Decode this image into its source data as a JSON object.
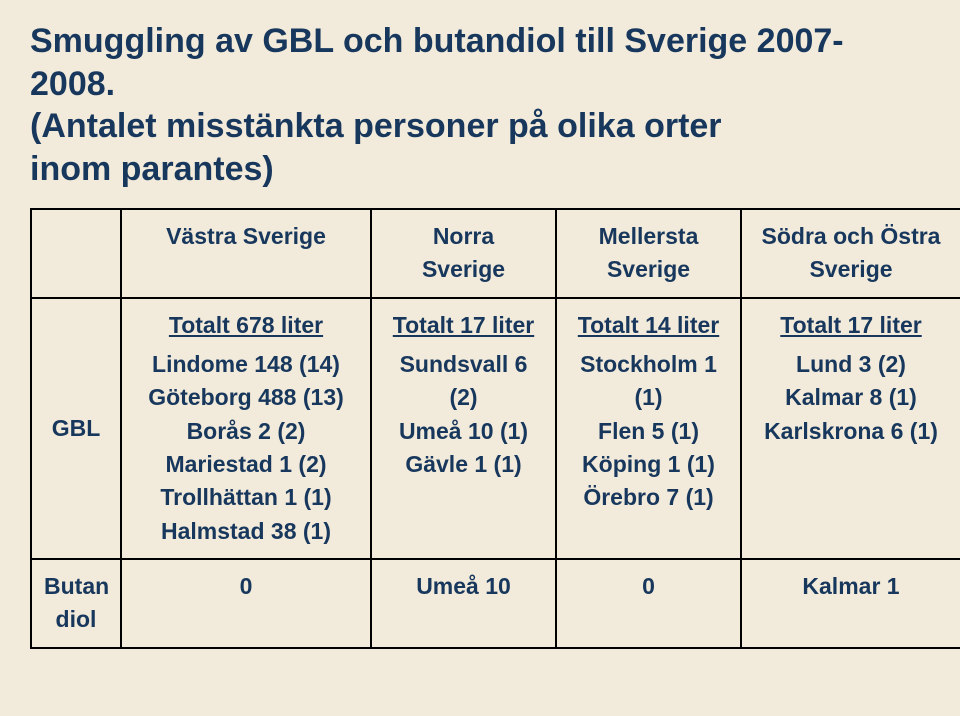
{
  "background_color": "#f2eada",
  "title_color": "#17375d",
  "cell_color": "#17375d",
  "title_line1": "Smuggling av GBL och butandiol till Sverige 2007-",
  "title_line2": "2008.",
  "title_line3": "(Antalet misstänkta personer på olika orter",
  "title_line4": "inom parantes)",
  "headers": {
    "west": "Västra Sverige",
    "north1": "Norra",
    "north2": "Sverige",
    "mid1": "Mellersta",
    "mid2": "Sverige",
    "south1": "Södra och Östra",
    "south2": "Sverige"
  },
  "rows": {
    "gbl": {
      "label": "GBL",
      "west_total": "Totalt 678 liter",
      "west_items": [
        "Lindome 148 (14)",
        "Göteborg 488 (13)",
        "Borås 2 (2)",
        "Mariestad 1 (2)",
        "Trollhättan 1 (1)",
        "Halmstad 38 (1)"
      ],
      "north_total": "Totalt 17 liter",
      "north_items": [
        "Sundsvall 6 (2)",
        "Umeå 10 (1)",
        "Gävle 1 (1)"
      ],
      "mid_total": "Totalt 14 liter",
      "mid_items": [
        "Stockholm 1 (1)",
        "Flen 5 (1)",
        "Köping 1 (1)",
        "Örebro 7 (1)"
      ],
      "south_total": "Totalt 17 liter",
      "south_items": [
        "Lund 3 (2)",
        "Kalmar 8 (1)",
        "Karlskrona 6 (1)"
      ]
    },
    "butandiol": {
      "label1": "Butan",
      "label2": "diol",
      "west": "0",
      "north": "Umeå 10",
      "mid": "0",
      "south": "Kalmar 1"
    }
  }
}
